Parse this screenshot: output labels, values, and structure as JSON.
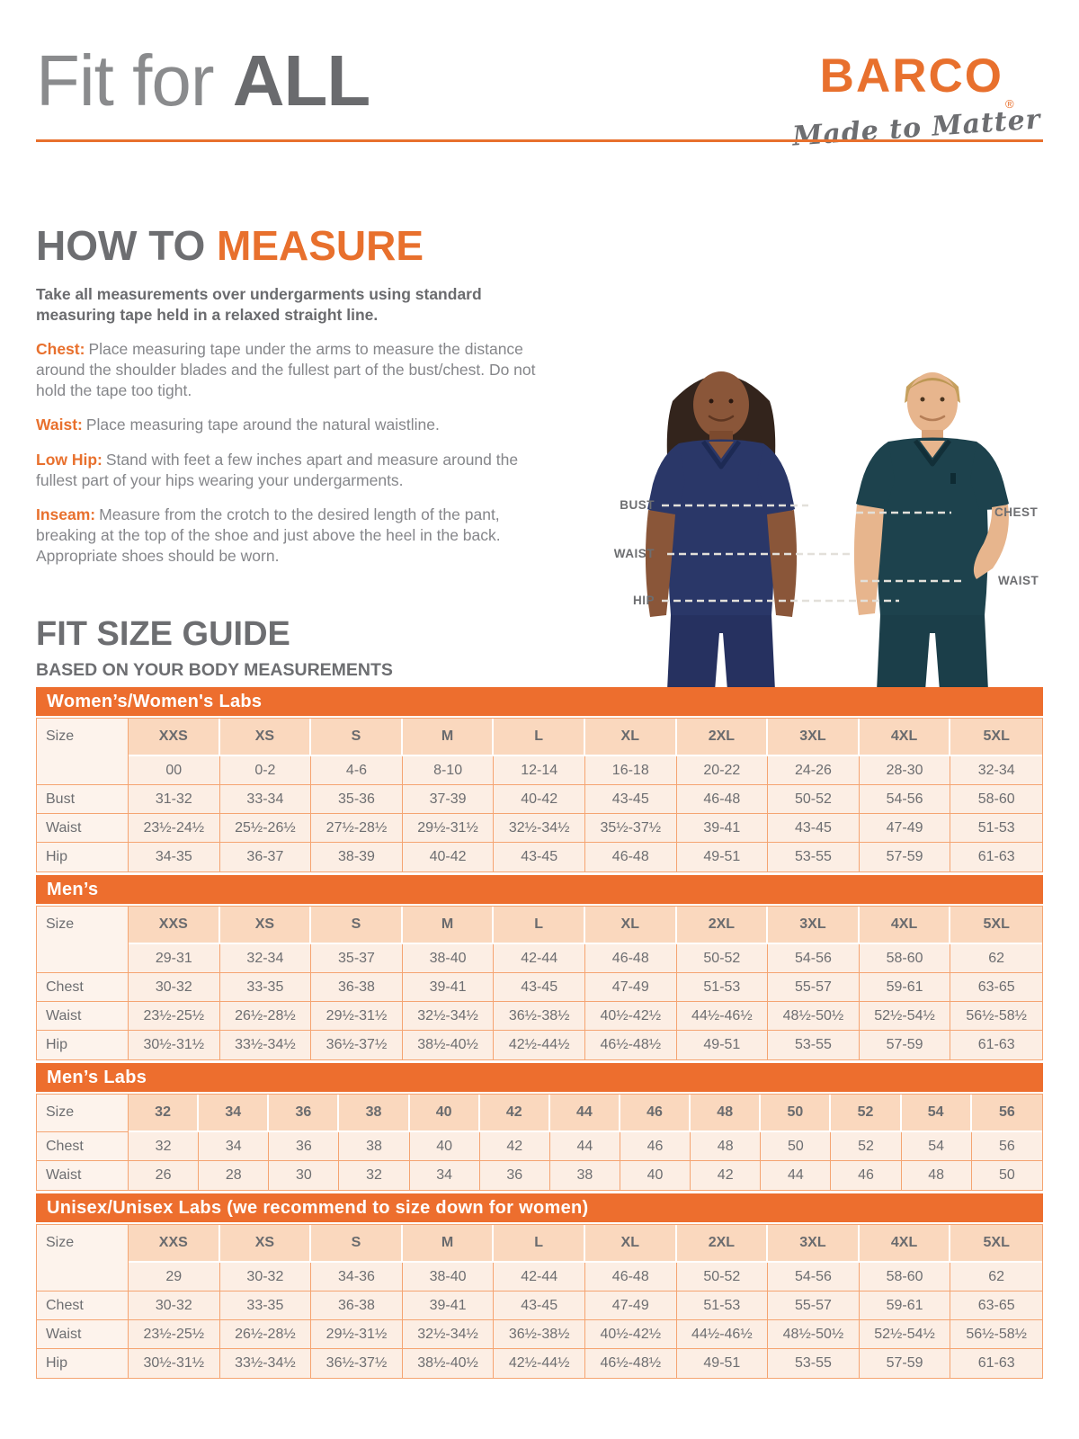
{
  "header": {
    "title_regular": "Fit for",
    "title_bold": "ALL"
  },
  "brand": {
    "name": "BARCO",
    "registered_mark": "®",
    "tagline": "Made to Matter"
  },
  "how_to_measure": {
    "heading_gray": "HOW TO",
    "heading_orange": "MEASURE",
    "intro": "Take all measurements over undergarments using standard measuring tape held in a relaxed straight line.",
    "items": [
      {
        "label": "Chest:",
        "text": "Place measuring tape under the arms to measure the distance around the shoulder blades and the fullest part of the bust/chest. Do not hold the tape too tight."
      },
      {
        "label": "Waist:",
        "text": "Place measuring tape around the natural waistline."
      },
      {
        "label": "Low Hip:",
        "text": "Stand with feet a few inches apart and measure around the fullest part of your hips wearing your undergarments."
      },
      {
        "label": "Inseam:",
        "text": "Measure from the crotch to the desired length of the pant, breaking at the top of the shoe and just above the heel in the back. Appropriate shoes should be worn."
      }
    ]
  },
  "figure": {
    "woman_labels": {
      "bust": "BUST",
      "waist": "WAIST",
      "hip": "HIP"
    },
    "man_labels": {
      "chest": "CHEST",
      "waist": "WAIST"
    }
  },
  "size_guide": {
    "heading": "FIT SIZE GUIDE",
    "subheading": "BASED ON YOUR BODY MEASUREMENTS",
    "tables": [
      {
        "banner": "Women’s/Women's Labs",
        "corner_label": "Size",
        "sizes": [
          "XXS",
          "XS",
          "S",
          "M",
          "L",
          "XL",
          "2XL",
          "3XL",
          "4XL",
          "5XL"
        ],
        "size_values": [
          "00",
          "0-2",
          "4-6",
          "8-10",
          "12-14",
          "16-18",
          "20-22",
          "24-26",
          "28-30",
          "32-34"
        ],
        "rows": [
          {
            "label": "Bust",
            "values": [
              "31-32",
              "33-34",
              "35-36",
              "37-39",
              "40-42",
              "43-45",
              "46-48",
              "50-52",
              "54-56",
              "58-60"
            ]
          },
          {
            "label": "Waist",
            "values": [
              "23½-24½",
              "25½-26½",
              "27½-28½",
              "29½-31½",
              "32½-34½",
              "35½-37½",
              "39-41",
              "43-45",
              "47-49",
              "51-53"
            ]
          },
          {
            "label": "Hip",
            "values": [
              "34-35",
              "36-37",
              "38-39",
              "40-42",
              "43-45",
              "46-48",
              "49-51",
              "53-55",
              "57-59",
              "61-63"
            ]
          }
        ]
      },
      {
        "banner": "Men’s",
        "corner_label": "Size",
        "sizes": [
          "XXS",
          "XS",
          "S",
          "M",
          "L",
          "XL",
          "2XL",
          "3XL",
          "4XL",
          "5XL"
        ],
        "size_values": [
          "29-31",
          "32-34",
          "35-37",
          "38-40",
          "42-44",
          "46-48",
          "50-52",
          "54-56",
          "58-60",
          "62"
        ],
        "rows": [
          {
            "label": "Chest",
            "values": [
              "30-32",
              "33-35",
              "36-38",
              "39-41",
              "43-45",
              "47-49",
              "51-53",
              "55-57",
              "59-61",
              "63-65"
            ]
          },
          {
            "label": "Waist",
            "values": [
              "23½-25½",
              "26½-28½",
              "29½-31½",
              "32½-34½",
              "36½-38½",
              "40½-42½",
              "44½-46½",
              "48½-50½",
              "52½-54½",
              "56½-58½"
            ]
          },
          {
            "label": "Hip",
            "values": [
              "30½-31½",
              "33½-34½",
              "36½-37½",
              "38½-40½",
              "42½-44½",
              "46½-48½",
              "49-51",
              "53-55",
              "57-59",
              "61-63"
            ]
          }
        ]
      },
      {
        "banner": "Men’s Labs",
        "corner_label": "Size",
        "sizes": [
          "32",
          "34",
          "36",
          "38",
          "40",
          "42",
          "44",
          "46",
          "48",
          "50",
          "52",
          "54",
          "56"
        ],
        "size_values": null,
        "rows": [
          {
            "label": "Chest",
            "values": [
              "32",
              "34",
              "36",
              "38",
              "40",
              "42",
              "44",
              "46",
              "48",
              "50",
              "52",
              "54",
              "56"
            ]
          },
          {
            "label": "Waist",
            "values": [
              "26",
              "28",
              "30",
              "32",
              "34",
              "36",
              "38",
              "40",
              "42",
              "44",
              "46",
              "48",
              "50"
            ]
          }
        ]
      },
      {
        "banner": "Unisex/Unisex Labs (we recommend to size down for women)",
        "corner_label": "Size",
        "sizes": [
          "XXS",
          "XS",
          "S",
          "M",
          "L",
          "XL",
          "2XL",
          "3XL",
          "4XL",
          "5XL"
        ],
        "size_values": [
          "29",
          "30-32",
          "34-36",
          "38-40",
          "42-44",
          "46-48",
          "50-52",
          "54-56",
          "58-60",
          "62"
        ],
        "rows": [
          {
            "label": "Chest",
            "values": [
              "30-32",
              "33-35",
              "36-38",
              "39-41",
              "43-45",
              "47-49",
              "51-53",
              "55-57",
              "59-61",
              "63-65"
            ]
          },
          {
            "label": "Waist",
            "values": [
              "23½-25½",
              "26½-28½",
              "29½-31½",
              "32½-34½",
              "36½-38½",
              "40½-42½",
              "44½-46½",
              "48½-50½",
              "52½-54½",
              "56½-58½"
            ]
          },
          {
            "label": "Hip",
            "values": [
              "30½-31½",
              "33½-34½",
              "36½-37½",
              "38½-40½",
              "42½-44½",
              "46½-48½",
              "49-51",
              "53-55",
              "57-59",
              "61-63"
            ]
          }
        ]
      }
    ]
  },
  "colors": {
    "accent_orange": "#e8702d",
    "banner_orange": "#ed6e2e",
    "table_border": "#f5a471",
    "header_cell_bg": "#fad8be",
    "value_cell_bg": "#fceee4",
    "label_cell_bg": "#fdf3ec",
    "text_gray": "#6d6e71",
    "woman_scrub_navy": "#2a3768",
    "man_scrub_teal": "#1d424d"
  }
}
